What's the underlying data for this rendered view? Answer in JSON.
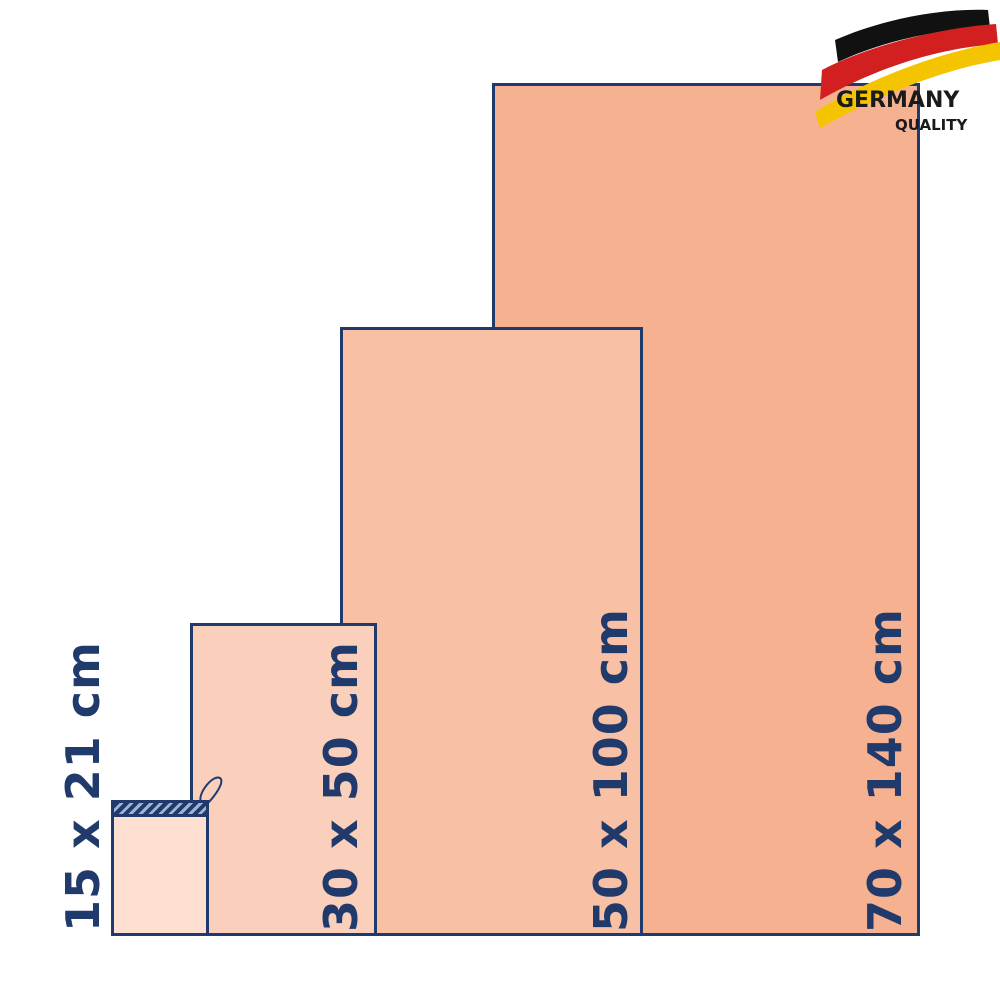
{
  "sizes": [
    {
      "label": "70 x 140 cm",
      "fill": "#f5b190"
    },
    {
      "label": "50 x 100 cm",
      "fill": "#f8c0a5"
    },
    {
      "label": "30 x 50 cm",
      "fill": "#fad0bc"
    },
    {
      "label": "15 x 21 cm",
      "fill": "#fde0d2"
    }
  ],
  "outline_color": "#1f3a6b",
  "logo": {
    "line1": "GERMANY",
    "line2": "QUALITY",
    "flag_colors": [
      "#111111",
      "#d21f1f",
      "#f5c400"
    ]
  }
}
